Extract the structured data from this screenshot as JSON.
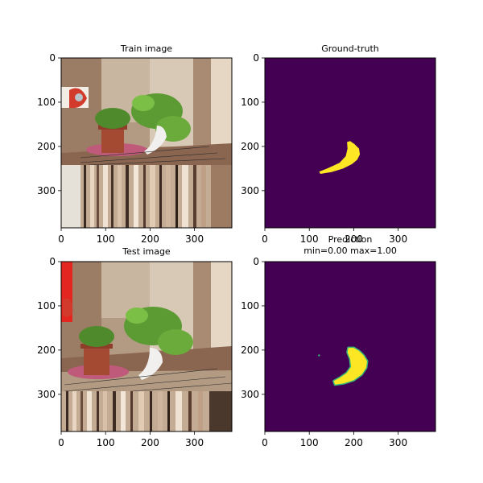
{
  "chart_data": [
    {
      "type": "image",
      "title": "Train image",
      "xticks": [
        0,
        100,
        200,
        300
      ],
      "yticks": [
        0,
        100,
        200,
        300
      ],
      "xlim": [
        0,
        384
      ],
      "ylim": [
        384,
        0
      ]
    },
    {
      "type": "heatmap",
      "title": "Ground-truth",
      "colormap": "viridis",
      "background_color": "#440154",
      "mask_color": "#fde725",
      "xticks": [
        0,
        100,
        200,
        300
      ],
      "yticks": [
        0,
        100,
        200,
        300
      ],
      "xlim": [
        0,
        384
      ],
      "ylim": [
        384,
        0
      ],
      "mask_outline": [
        [
          185,
          190
        ],
        [
          192,
          188
        ],
        [
          202,
          195
        ],
        [
          212,
          205
        ],
        [
          214,
          218
        ],
        [
          208,
          230
        ],
        [
          196,
          240
        ],
        [
          176,
          250
        ],
        [
          150,
          258
        ],
        [
          125,
          262
        ],
        [
          122,
          257
        ],
        [
          140,
          250
        ],
        [
          168,
          237
        ],
        [
          182,
          222
        ],
        [
          186,
          205
        ]
      ]
    },
    {
      "type": "image",
      "title": "Test image",
      "xticks": [
        0,
        100,
        200,
        300
      ],
      "yticks": [
        0,
        100,
        200,
        300
      ],
      "xlim": [
        0,
        384
      ],
      "ylim": [
        384,
        0
      ]
    },
    {
      "type": "heatmap",
      "title_line1": "Prediction",
      "title_line2": "min=0.00 max=1.00",
      "colormap": "viridis",
      "min": 0.0,
      "max": 1.0,
      "background_color": "#440154",
      "mask_color": "#fde725",
      "edge_color": "#35b779",
      "xticks": [
        0,
        100,
        200,
        300
      ],
      "yticks": [
        0,
        100,
        200,
        300
      ],
      "xlim": [
        0,
        384
      ],
      "ylim": [
        384,
        0
      ],
      "mask_outline": [
        [
          188,
          195
        ],
        [
          200,
          195
        ],
        [
          212,
          202
        ],
        [
          222,
          212
        ],
        [
          230,
          225
        ],
        [
          228,
          240
        ],
        [
          218,
          255
        ],
        [
          200,
          268
        ],
        [
          178,
          275
        ],
        [
          158,
          278
        ],
        [
          155,
          270
        ],
        [
          168,
          263
        ],
        [
          184,
          252
        ],
        [
          194,
          238
        ],
        [
          192,
          220
        ],
        [
          186,
          205
        ]
      ]
    }
  ]
}
